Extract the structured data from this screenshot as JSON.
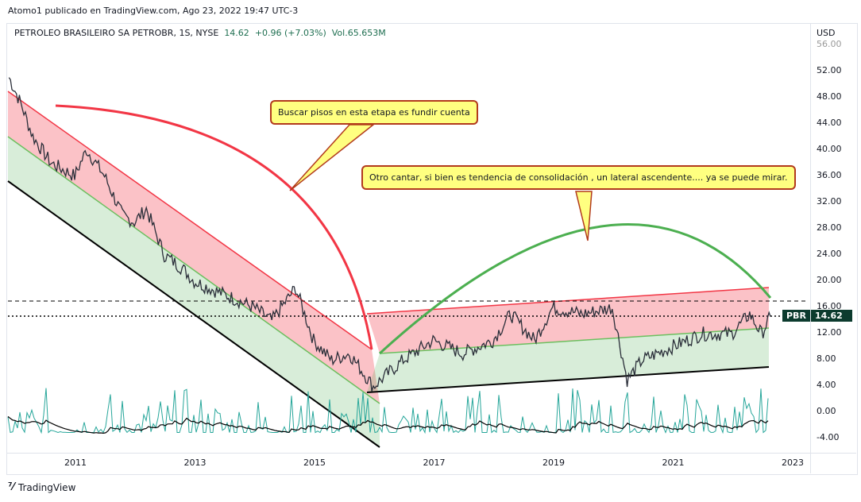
{
  "header": {
    "published": "Atomo1 publicado en TradingView.com, Ago 23, 2022 19:47 UTC-3"
  },
  "legend": {
    "symbol": "PETROLEO BRASILEIRO SA PETROBR, 1S, NYSE",
    "price": "14.62",
    "change": "+0.96 (+7.03%)",
    "volume": "Vol.65.653M"
  },
  "price_axis": {
    "currency": "USD",
    "ticks": [
      "56.00",
      "52.00",
      "48.00",
      "44.00",
      "40.00",
      "36.00",
      "32.00",
      "28.00",
      "24.00",
      "20.00",
      "16.00",
      "12.00",
      "8.00",
      "4.00",
      "0.00",
      "-4.00"
    ]
  },
  "time_axis": {
    "ticks": [
      "2011",
      "2013",
      "2015",
      "2017",
      "2019",
      "2021",
      "2023"
    ]
  },
  "price_tag": {
    "symbol": "PBR",
    "value": "14.62"
  },
  "callouts": [
    "Buscar pisos en esta etapa es fundir cuenta",
    "Otro cantar, si bien es tendencia de consolidación , un lateral ascendente....  ya se puede mirar."
  ],
  "brand": "TradingView",
  "colors": {
    "red": "#f23645",
    "green": "#4caf50",
    "tag": "#0c3b2e",
    "callout_bg": "#ffff80"
  },
  "price_path": [
    [
      2009.9,
      51
    ],
    [
      2010.1,
      47
    ],
    [
      2010.3,
      42
    ],
    [
      2010.6,
      38
    ],
    [
      2011.0,
      36
    ],
    [
      2011.2,
      40
    ],
    [
      2011.5,
      36
    ],
    [
      2011.8,
      30
    ],
    [
      2012.0,
      29
    ],
    [
      2012.2,
      31
    ],
    [
      2012.5,
      24
    ],
    [
      2012.8,
      22
    ],
    [
      2013.0,
      20
    ],
    [
      2013.5,
      18
    ],
    [
      2014.0,
      16
    ],
    [
      2014.3,
      14
    ],
    [
      2014.7,
      19
    ],
    [
      2015.0,
      11
    ],
    [
      2015.3,
      8
    ],
    [
      2015.6,
      9
    ],
    [
      2016.0,
      4
    ],
    [
      2016.5,
      8
    ],
    [
      2017.0,
      11
    ],
    [
      2017.5,
      9
    ],
    [
      2018.0,
      11
    ],
    [
      2018.3,
      15
    ],
    [
      2018.7,
      11
    ],
    [
      2019.0,
      16
    ],
    [
      2019.5,
      15
    ],
    [
      2020.0,
      16
    ],
    [
      2020.25,
      5
    ],
    [
      2020.5,
      8
    ],
    [
      2021.0,
      10
    ],
    [
      2021.5,
      12
    ],
    [
      2022.0,
      12
    ],
    [
      2022.3,
      15
    ],
    [
      2022.5,
      12
    ],
    [
      2022.65,
      14.62
    ]
  ]
}
